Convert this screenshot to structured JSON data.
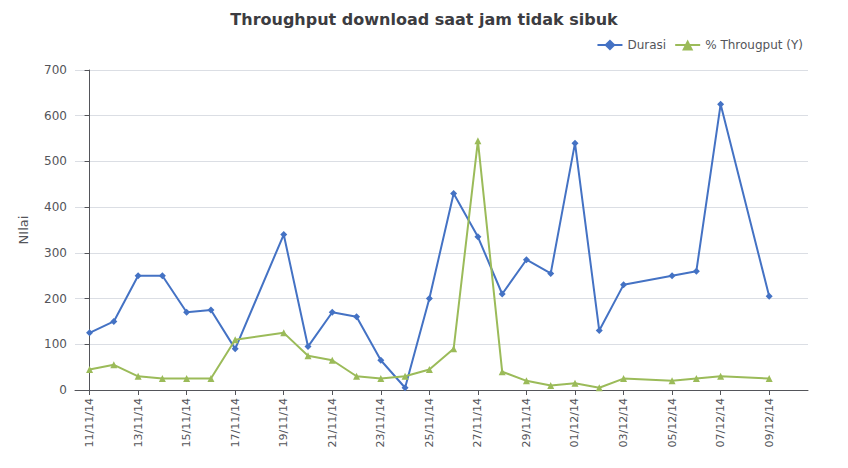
{
  "chart_data": {
    "type": "line",
    "title": "Throughput download saat jam tidak sibuk",
    "ylabel": "NIlai",
    "x": [
      0,
      0.5,
      1,
      1.5,
      2,
      2.5,
      3,
      4,
      4.5,
      5,
      5.5,
      6,
      6.5,
      7,
      7.5,
      8,
      8.5,
      9,
      9.5,
      10,
      10.5,
      11,
      12,
      12.5,
      13,
      14
    ],
    "series": [
      {
        "name": "Durasi",
        "color": "#4472C4",
        "marker": "diamond",
        "values": [
          125,
          150,
          250,
          250,
          170,
          175,
          90,
          340,
          95,
          170,
          160,
          65,
          5,
          200,
          430,
          335,
          210,
          285,
          255,
          540,
          130,
          230,
          250,
          260,
          625,
          205
        ]
      },
      {
        "name": "% Througput (Y)",
        "color": "#9BBB59",
        "marker": "triangle",
        "values": [
          45,
          55,
          30,
          25,
          25,
          25,
          110,
          125,
          75,
          65,
          30,
          25,
          30,
          45,
          90,
          545,
          40,
          20,
          10,
          15,
          5,
          25,
          20,
          25,
          30,
          25
        ]
      }
    ],
    "xlim": [
      -0.3,
      14.8
    ],
    "xticks": [
      {
        "value": 0,
        "label": "11/11/14"
      },
      {
        "value": 1,
        "label": "13/11/14"
      },
      {
        "value": 2,
        "label": "15/11/14"
      },
      {
        "value": 3,
        "label": "17/11/14"
      },
      {
        "value": 4,
        "label": "19/11/14"
      },
      {
        "value": 5,
        "label": "21/11/14"
      },
      {
        "value": 6,
        "label": "23/11/14"
      },
      {
        "value": 7,
        "label": "25/11/14"
      },
      {
        "value": 8,
        "label": "27/11/14"
      },
      {
        "value": 9,
        "label": "29/11/14"
      },
      {
        "value": 10,
        "label": "01/12/14"
      },
      {
        "value": 11,
        "label": "03/12/14"
      },
      {
        "value": 12,
        "label": "05/12/14"
      },
      {
        "value": 13,
        "label": "07/12/14"
      },
      {
        "value": 14,
        "label": "09/12/14"
      }
    ],
    "ylim": [
      0,
      700
    ],
    "yticks": [
      0,
      100,
      200,
      300,
      400,
      500,
      600,
      700
    ],
    "grid": true,
    "legend": "upper right"
  }
}
